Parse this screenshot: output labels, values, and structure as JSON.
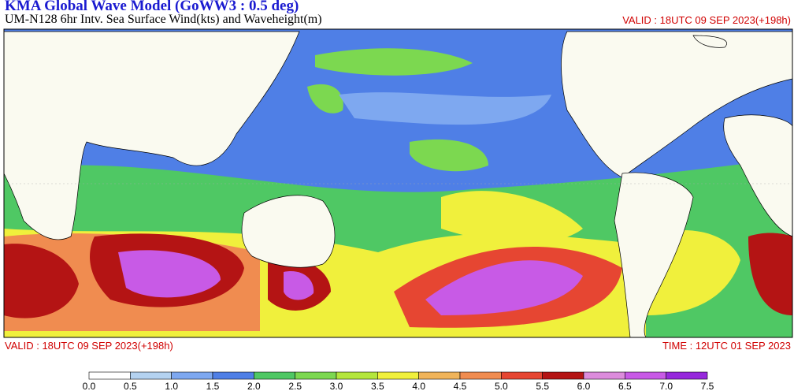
{
  "header": {
    "title": "KMA  Global Wave Model (GoWW3 : 0.5 deg)",
    "subtitle": "UM-N128  6hr Intv. Sea Surface Wind(kts) and Waveheight(m)",
    "valid_top": "VALID : 18UTC 09 SEP 2023(+198h)"
  },
  "footer": {
    "valid": "VALID : 18UTC 09 SEP 2023(+198h)",
    "time": "TIME : 12UTC 01 SEP 2023"
  },
  "colorbar": {
    "colors": [
      "#ffffff",
      "#b4d2f0",
      "#7ea8f0",
      "#4f7fe6",
      "#4fc864",
      "#7cd850",
      "#b4e63c",
      "#f0f03c",
      "#f0b45a",
      "#f08c50",
      "#e64632",
      "#b41414",
      "#dc8cdc",
      "#c85ae6",
      "#9628dc"
    ],
    "ticks": [
      "0.0",
      "0.5",
      "1.0",
      "1.5",
      "2.0",
      "2.5",
      "3.0",
      "3.5",
      "4.0",
      "4.5",
      "5.0",
      "5.5",
      "6.0",
      "6.5",
      "7.0",
      "7.5"
    ]
  }
}
